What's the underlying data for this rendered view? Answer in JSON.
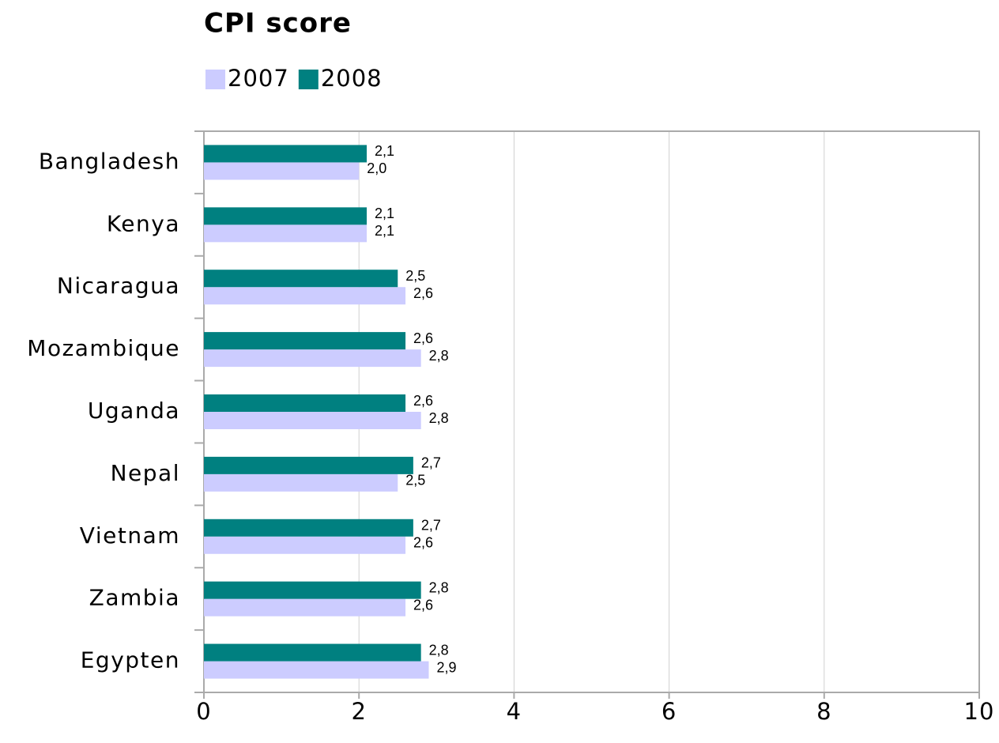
{
  "chart_data": {
    "type": "bar",
    "orientation": "horizontal",
    "title": "CPI score",
    "categories": [
      "Bangladesh",
      "Kenya",
      "Nicaragua",
      "Mozambique",
      "Uganda",
      "Nepal",
      "Vietnam",
      "Zambia",
      "Egypten"
    ],
    "series": [
      {
        "name": "2007",
        "color": "#ccccff",
        "values": [
          2.0,
          2.1,
          2.6,
          2.8,
          2.8,
          2.5,
          2.6,
          2.6,
          2.9
        ],
        "value_labels": [
          "2,0",
          "2,1",
          "2,6",
          "2,8",
          "2,8",
          "2,5",
          "2,6",
          "2,6",
          "2,9"
        ]
      },
      {
        "name": "2008",
        "color": "#008080",
        "values": [
          2.1,
          2.1,
          2.5,
          2.6,
          2.6,
          2.7,
          2.7,
          2.8,
          2.8
        ],
        "value_labels": [
          "2,1",
          "2,1",
          "2,5",
          "2,6",
          "2,6",
          "2,7",
          "2,7",
          "2,8",
          "2,8"
        ]
      }
    ],
    "xlim": [
      0,
      10
    ],
    "xticks": [
      0,
      2,
      4,
      6,
      8,
      10
    ],
    "grid": true,
    "legend": "top-left"
  }
}
